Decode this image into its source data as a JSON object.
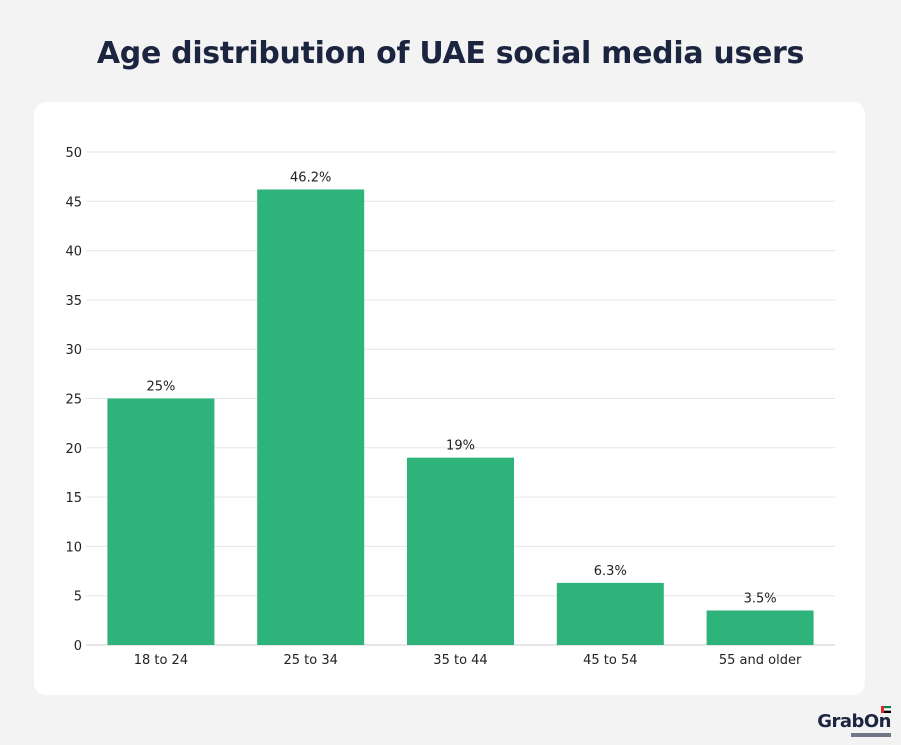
{
  "chart_data": {
    "type": "bar",
    "title": "Age distribution of UAE social media users",
    "categories": [
      "18 to 24",
      "25 to 34",
      "35 to 44",
      "45 to 54",
      "55 and older"
    ],
    "values": [
      25,
      46.2,
      19,
      6.3,
      3.5
    ],
    "data_labels": [
      "25%",
      "46.2%",
      "19%",
      "6.3%",
      "3.5%"
    ],
    "xlabel": "",
    "ylabel": "",
    "ylim": [
      0,
      50
    ],
    "yticks": [
      0,
      5,
      10,
      15,
      20,
      25,
      30,
      35,
      40,
      45,
      50
    ],
    "grid": true,
    "bar_color": "#2eb37a"
  },
  "branding": {
    "logo_text": "GrabOn",
    "flag_colors": [
      "#e4262b",
      "#00843d",
      "#ffffff",
      "#000000"
    ]
  }
}
